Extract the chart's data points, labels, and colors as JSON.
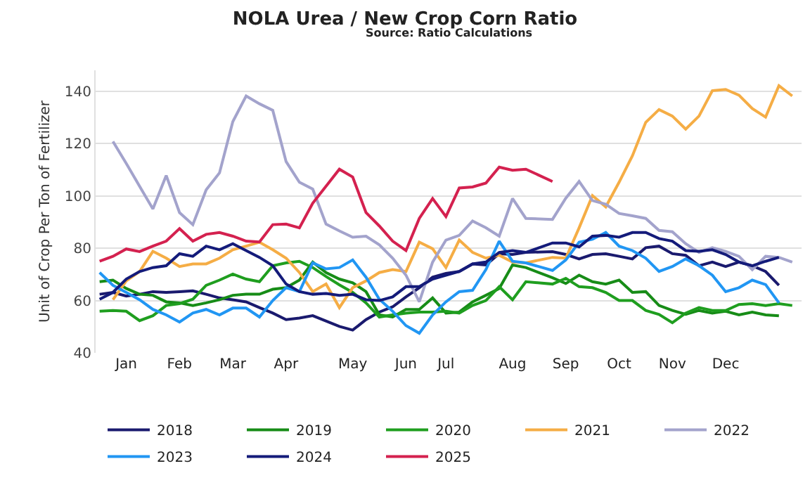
{
  "chart_data": {
    "type": "line",
    "title": "NOLA Urea / New Crop Corn Ratio",
    "subtitle": "Source: Ratio Calculations",
    "ylabel": "Unit of Crop Per Ton of Fertilizer",
    "categories": [
      null,
      null,
      "Jan",
      null,
      null,
      null,
      "Feb",
      null,
      null,
      null,
      "Mar",
      null,
      null,
      null,
      "Apr",
      null,
      null,
      null,
      null,
      "May",
      null,
      null,
      null,
      "Jun",
      null,
      null,
      "Jul",
      null,
      null,
      null,
      null,
      "Aug",
      null,
      null,
      null,
      "Sep",
      null,
      null,
      null,
      "Oct",
      null,
      null,
      null,
      "Nov",
      null,
      null,
      null,
      "Dec",
      null,
      null,
      null,
      null,
      null
    ],
    "ylim": [
      40,
      148
    ],
    "yticks": [
      40,
      60,
      80,
      100,
      120,
      140
    ],
    "grid": "y",
    "legend": "bottom",
    "line_style": "solid",
    "series": [
      {
        "name": "2018",
        "color": "#1a1a6e",
        "values": [
          62.4,
          63.1,
          61.7,
          62.4,
          63.4,
          63.1,
          63.4,
          63.7,
          62.4,
          61,
          60.3,
          59.5,
          57.3,
          55.2,
          52.7,
          53.3,
          54.2,
          null,
          50.1,
          48.7,
          52.7,
          55.6,
          57.6,
          61.4,
          64.9,
          68.9,
          70.4,
          71.1,
          74,
          73.6,
          77.9,
          77.6,
          78.4,
          null,
          78.7,
          77.6,
          75.9,
          77.6,
          77.9,
          76.9,
          75.9,
          80.2,
          80.8,
          77.9,
          77.3,
          73.3,
          74.7,
          73,
          74.7,
          73.3,
          71.1,
          65.8,
          null
        ]
      },
      {
        "name": "2019",
        "color": "#178c17",
        "values": [
          67.2,
          67.8,
          64.6,
          62.4,
          62,
          59.5,
          59.1,
          58.1,
          59.1,
          60.3,
          62,
          62.4,
          62.4,
          64.3,
          64.9,
          67.8,
          74.7,
          70.7,
          68.2,
          66.8,
          63.4,
          54.5,
          53.7,
          56.6,
          56.6,
          61,
          55.2,
          55.6,
          59.5,
          62,
          64.6,
          73.6,
          72.6,
          null,
          68.7,
          66.5,
          69.7,
          67.2,
          66.3,
          67.8,
          63.1,
          63.4,
          58.1,
          56.2,
          54.7,
          56.2,
          55.2,
          55.9,
          54.5,
          55.6,
          54.5,
          54.2,
          null
        ]
      },
      {
        "name": "2020",
        "color": "#1f9e1f",
        "values": [
          55.9,
          56.2,
          55.9,
          52.3,
          54.2,
          58.1,
          58.8,
          60.5,
          65.8,
          67.8,
          70.1,
          68.2,
          67.2,
          73.3,
          74.4,
          75,
          72.6,
          69.2,
          66,
          63.1,
          59.1,
          53.7,
          54.5,
          55.2,
          55.6,
          55.6,
          55.9,
          55.2,
          58.1,
          60,
          65.3,
          60.3,
          67.2,
          null,
          66.3,
          68.5,
          65.3,
          64.9,
          63.1,
          60,
          60,
          56.2,
          54.7,
          51.5,
          55.2,
          57.3,
          56.2,
          56.2,
          58.5,
          58.8,
          58.1,
          58.8,
          58.1
        ]
      },
      {
        "name": "2021",
        "color": "#f5ad45",
        "values": [
          null,
          60.3,
          67.5,
          71.1,
          78.8,
          76.2,
          73,
          74,
          74,
          76.2,
          79.4,
          80.8,
          82.3,
          79.4,
          76.2,
          70.7,
          63.4,
          66.3,
          57.3,
          64.9,
          67.5,
          70.7,
          71.8,
          71.1,
          82.3,
          79.8,
          72.6,
          83.1,
          78.4,
          76.2,
          77.3,
          74.7,
          74.4,
          null,
          76.5,
          76.2,
          87.8,
          100.1,
          95.8,
          105.2,
          115.3,
          128.1,
          133,
          130.5,
          125.5,
          130.5,
          140.2,
          140.7,
          138.5,
          133.4,
          130.1,
          142.1,
          138.2
        ]
      },
      {
        "name": "2022",
        "color": "#a3a3cc",
        "values": [
          null,
          120.8,
          112.4,
          103.7,
          95,
          107.8,
          93.6,
          89,
          102.3,
          108.8,
          128.4,
          138.2,
          135.2,
          132.7,
          113.1,
          105.2,
          102.6,
          89.2,
          86.6,
          84.2,
          84.6,
          81.3,
          76.2,
          69.7,
          59.5,
          74.7,
          83.1,
          84.9,
          90.4,
          87.8,
          84.6,
          99,
          91.4,
          null,
          91,
          99.1,
          105.5,
          98.2,
          96.8,
          93.3,
          92.4,
          91.4,
          86.8,
          86.3,
          81.7,
          78.4,
          80.2,
          78.8,
          76.9,
          71.8,
          76.9,
          76.5,
          74.7
        ]
      },
      {
        "name": "2023",
        "color": "#2196f3",
        "values": [
          70.7,
          65.8,
          63.1,
          60.3,
          56.6,
          54.5,
          51.8,
          55.2,
          56.6,
          54.5,
          57.1,
          57.1,
          53.7,
          60,
          64.9,
          63.4,
          74.4,
          72.1,
          72.6,
          75.5,
          68.9,
          60.5,
          55.9,
          50.4,
          47.5,
          54.5,
          59.5,
          63.4,
          63.9,
          71.8,
          82.7,
          75,
          74.4,
          null,
          71.5,
          75.5,
          82.3,
          83.4,
          86,
          80.8,
          79.1,
          76.2,
          71.1,
          73,
          75.9,
          73.3,
          69.7,
          63.4,
          64.9,
          67.8,
          66.1,
          59.1,
          null
        ]
      },
      {
        "name": "2024",
        "color": "#141b7a",
        "values": [
          60.5,
          63.1,
          68.2,
          71.1,
          72.6,
          73.3,
          77.9,
          76.9,
          80.8,
          79.4,
          81.7,
          79.1,
          76.5,
          73.3,
          66.3,
          63.4,
          62.4,
          62.7,
          62,
          62.4,
          60.3,
          60,
          61.4,
          65.3,
          65.3,
          68.2,
          69.7,
          71.1,
          74,
          74.7,
          78.4,
          79.1,
          78.4,
          null,
          82,
          82,
          80.5,
          84.6,
          84.9,
          84.2,
          86,
          86,
          83.7,
          82.7,
          79.1,
          78.8,
          79.4,
          77.6,
          74.7,
          73.3,
          75,
          76.5,
          null
        ]
      },
      {
        "name": "2025",
        "color": "#d4214f",
        "values": [
          75,
          76.9,
          79.7,
          78.7,
          80.8,
          82.7,
          87.5,
          82.7,
          85.3,
          86,
          84.6,
          82.7,
          82.4,
          89,
          89.2,
          87.8,
          97.2,
          null,
          110.2,
          107.2,
          93.6,
          88.5,
          82.7,
          79.1,
          91.4,
          99,
          92.1,
          103,
          103.4,
          104.9,
          111,
          109.8,
          110.2,
          null,
          105.5,
          null,
          null,
          null,
          null,
          null,
          null,
          null,
          null,
          null,
          null,
          null,
          null,
          null,
          null,
          null,
          null,
          null,
          null
        ]
      }
    ]
  }
}
